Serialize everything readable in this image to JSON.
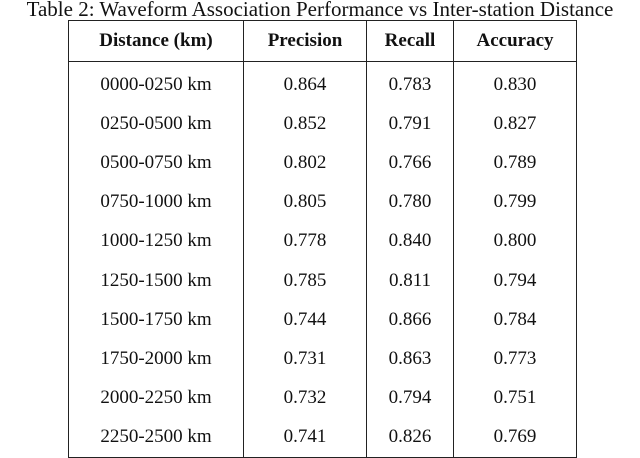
{
  "caption": "Table 2: Waveform Association Performance vs Inter-station Distance",
  "table": {
    "header": [
      "Distance (km)",
      "Precision",
      "Recall",
      "Accuracy"
    ],
    "rows": [
      [
        "0000-0250 km",
        "0.864",
        "0.783",
        "0.830"
      ],
      [
        "0250-0500 km",
        "0.852",
        "0.791",
        "0.827"
      ],
      [
        "0500-0750 km",
        "0.802",
        "0.766",
        "0.789"
      ],
      [
        "0750-1000 km",
        "0.805",
        "0.780",
        "0.799"
      ],
      [
        "1000-1250 km",
        "0.778",
        "0.840",
        "0.800"
      ],
      [
        "1250-1500 km",
        "0.785",
        "0.811",
        "0.794"
      ],
      [
        "1500-1750 km",
        "0.744",
        "0.866",
        "0.784"
      ],
      [
        "1750-2000 km",
        "0.731",
        "0.863",
        "0.773"
      ],
      [
        "2000-2250 km",
        "0.732",
        "0.794",
        "0.751"
      ],
      [
        "2250-2500 km",
        "0.741",
        "0.826",
        "0.769"
      ]
    ]
  }
}
